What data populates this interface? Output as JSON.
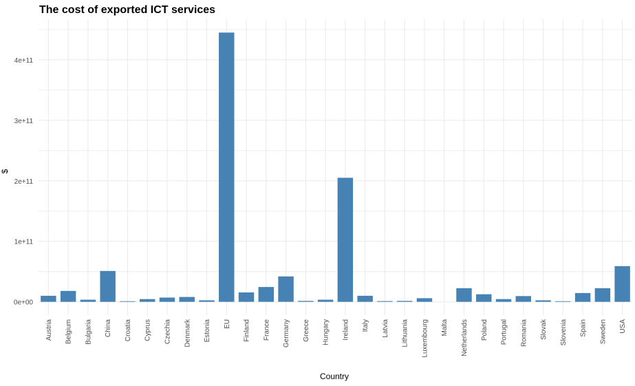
{
  "chart_data": {
    "type": "bar",
    "title": "The cost of exported ICT services",
    "xlabel": "Country",
    "ylabel": "$",
    "categories": [
      "Austria",
      "Belgium",
      "Bulgaria",
      "China",
      "Croatia",
      "Cyprus",
      "Czechia",
      "Denmark",
      "Estonia",
      "EU",
      "Finland",
      "France",
      "Germany",
      "Greece",
      "Hungary",
      "Ireland",
      "Italy",
      "Latvia",
      "Lithuania",
      "Luxembourg",
      "Malta",
      "Netherlands",
      "Poland",
      "Portugal",
      "Romania",
      "Slovak",
      "Slovenia",
      "Spain",
      "Sweden",
      "USA"
    ],
    "values": [
      10000000000.0,
      18000000000.0,
      3500000000.0,
      51000000000.0,
      1000000000.0,
      4500000000.0,
      7000000000.0,
      8000000000.0,
      2500000000.0,
      445000000000.0,
      15500000000.0,
      24500000000.0,
      42000000000.0,
      1500000000.0,
      3500000000.0,
      205000000000.0,
      10000000000.0,
      1200000000.0,
      1500000000.0,
      6000000000.0,
      0,
      22500000000.0,
      12500000000.0,
      4500000000.0,
      9500000000.0,
      2500000000.0,
      1000000000.0,
      14500000000.0,
      22500000000.0,
      59000000000.0
    ],
    "y_ticks": [
      0,
      100000000000.0,
      200000000000.0,
      300000000000.0,
      400000000000.0
    ],
    "y_tick_labels": [
      "0e+00",
      "1e+11",
      "2e+11",
      "3e+11",
      "4e+11"
    ],
    "ylim": [
      -22000000000.0,
      467000000000.0
    ],
    "grid": true,
    "bar_color": "#4682B4",
    "grid_color": "#EBEBEB",
    "legend": "none"
  }
}
